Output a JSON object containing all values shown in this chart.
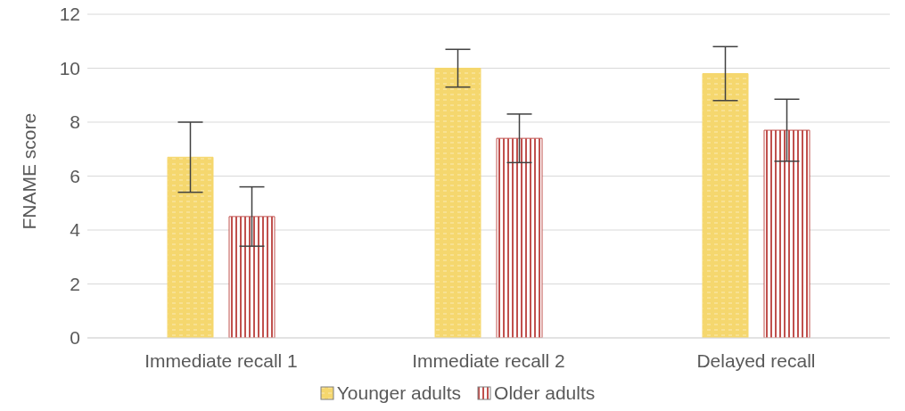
{
  "chart_data": {
    "type": "bar",
    "ylabel": "FNAME score",
    "categories": [
      "Immediate recall 1",
      "Immediate recall 2",
      "Delayed recall"
    ],
    "series": [
      {
        "name": "Younger adults",
        "color": "#f5d76e",
        "values": [
          6.7,
          10.0,
          9.8
        ],
        "errors": [
          1.3,
          0.7,
          1.0
        ]
      },
      {
        "name": "Older adults",
        "color": "#c0504d",
        "values": [
          4.5,
          7.4,
          7.7
        ],
        "errors": [
          1.1,
          0.9,
          1.15
        ]
      }
    ],
    "ylim": [
      0,
      12
    ],
    "yticks": [
      0,
      2,
      4,
      6,
      8,
      10,
      12
    ],
    "grid": "y",
    "legend": "bottom"
  }
}
